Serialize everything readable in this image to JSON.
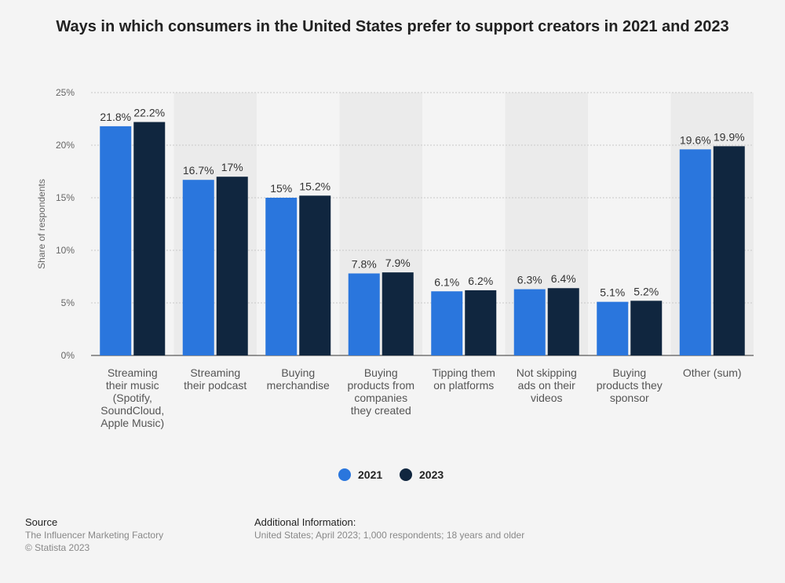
{
  "title": "Ways in which consumers in the United States prefer to support creators in 2021 and 2023",
  "colors": {
    "series_2021": "#2a76dd",
    "series_2023": "#10263f",
    "stripe": "#ebebeb",
    "grid": "#c8c8c8"
  },
  "chart_data": {
    "type": "bar",
    "categories": [
      [
        "Streaming",
        "their music",
        "(Spotify,",
        "SoundCloud,",
        "Apple Music)"
      ],
      [
        "Streaming",
        "their podcast"
      ],
      [
        "Buying",
        "merchandise"
      ],
      [
        "Buying",
        "products from",
        "companies",
        "they created"
      ],
      [
        "Tipping them",
        "on platforms"
      ],
      [
        "Not skipping",
        "ads on their",
        "videos"
      ],
      [
        "Buying",
        "products they",
        "sponsor"
      ],
      [
        "Other (sum)"
      ]
    ],
    "series": [
      {
        "name": "2021",
        "values": [
          21.8,
          16.7,
          15,
          7.8,
          6.1,
          6.3,
          5.1,
          19.6
        ],
        "labels": [
          "21.8%",
          "16.7%",
          "15%",
          "7.8%",
          "6.1%",
          "6.3%",
          "5.1%",
          "19.6%"
        ]
      },
      {
        "name": "2023",
        "values": [
          22.2,
          17,
          15.2,
          7.9,
          6.2,
          6.4,
          5.2,
          19.9
        ],
        "labels": [
          "22.2%",
          "17%",
          "15.2%",
          "7.9%",
          "6.2%",
          "6.4%",
          "5.2%",
          "19.9%"
        ]
      }
    ],
    "ylabel": "Share of respondents",
    "xlabel": "",
    "ylim": [
      0,
      25
    ],
    "yticks": [
      0,
      5,
      10,
      15,
      20,
      25
    ],
    "ytick_labels": [
      "0%",
      "5%",
      "10%",
      "15%",
      "20%",
      "25%"
    ],
    "grid": true,
    "legend_position": "bottom-center"
  },
  "footer": {
    "source_heading": "Source",
    "source_lines": [
      "The Influencer Marketing Factory",
      "© Statista 2023"
    ],
    "info_heading": "Additional Information:",
    "info_text": "United States; April 2023; 1,000 respondents; 18 years and older"
  }
}
